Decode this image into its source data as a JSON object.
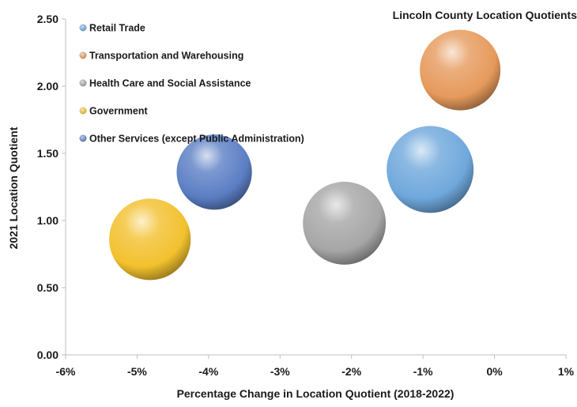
{
  "chart_data": {
    "type": "bubble",
    "title": "Lincoln County Location Quotients",
    "xlabel": "Percentage Change in Location Quotient (2018-2022)",
    "ylabel": "2021 Location Quotient",
    "xlim": [
      -6,
      1
    ],
    "ylim": [
      0,
      2.5
    ],
    "x_ticks": [
      -6,
      -5,
      -4,
      -3,
      -2,
      -1,
      0,
      1
    ],
    "x_tick_labels": [
      "-6%",
      "-5%",
      "-4%",
      "-3%",
      "-2%",
      "-1%",
      "0%",
      "1%"
    ],
    "y_ticks": [
      0,
      0.5,
      1.0,
      1.5,
      2.0,
      2.5
    ],
    "y_tick_labels": [
      "0.00",
      "0.50",
      "1.00",
      "1.50",
      "2.00",
      "2.50"
    ],
    "grid": false,
    "legend_position": "top-left",
    "series": [
      {
        "name": "Retail Trade",
        "x": -0.9,
        "y": 1.38,
        "size": 1.0,
        "color": "#6fa8dc"
      },
      {
        "name": "Transportation and Warehousing",
        "x": -0.48,
        "y": 2.12,
        "size": 0.86,
        "color": "#e69a5c"
      },
      {
        "name": "Health Care and Social Assistance",
        "x": -2.1,
        "y": 0.98,
        "size": 0.91,
        "color": "#a6a6a6"
      },
      {
        "name": "Government",
        "x": -4.82,
        "y": 0.86,
        "size": 0.88,
        "color": "#f2c12e"
      },
      {
        "name": "Other Services (except Public Administration)",
        "x": -3.92,
        "y": 1.36,
        "size": 0.75,
        "color": "#5b7ec4"
      }
    ]
  }
}
